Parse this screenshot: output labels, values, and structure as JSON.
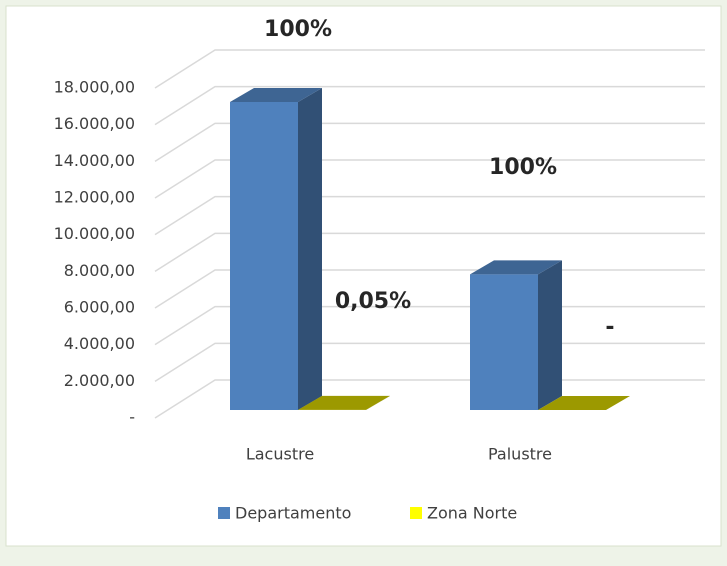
{
  "chart_data": {
    "type": "bar3d",
    "categories": [
      "Lacustre",
      "Palustre"
    ],
    "series": [
      {
        "name": "Departamento",
        "color": "#4f81bd",
        "values": [
          16800,
          7400
        ],
        "labels": [
          "100%",
          "100%"
        ]
      },
      {
        "name": "Zona Norte",
        "color": "#c8c400",
        "values": [
          8.4,
          0
        ],
        "labels": [
          "0,05%",
          "-"
        ]
      }
    ],
    "ylim": [
      0,
      18000
    ],
    "yticks": [
      {
        "value": 0,
        "label": "-"
      },
      {
        "value": 2000,
        "label": "2.000,00"
      },
      {
        "value": 4000,
        "label": "4.000,00"
      },
      {
        "value": 6000,
        "label": "6.000,00"
      },
      {
        "value": 8000,
        "label": "8.000,00"
      },
      {
        "value": 10000,
        "label": "10.000,00"
      },
      {
        "value": 12000,
        "label": "12.000,00"
      },
      {
        "value": 14000,
        "label": "14.000,00"
      },
      {
        "value": 16000,
        "label": "16.000,00"
      },
      {
        "value": 18000,
        "label": "18.000,00"
      }
    ],
    "grid": true,
    "legend": "bottom"
  }
}
